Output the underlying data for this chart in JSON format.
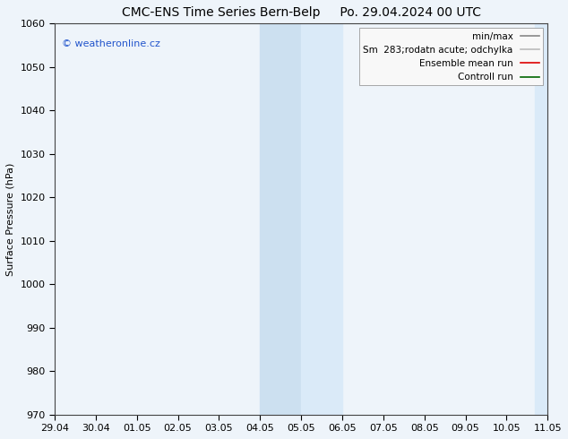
{
  "title_left": "CMC-ENS Time Series Bern-Belp",
  "title_right": "Po. 29.04.2024 00 UTC",
  "ylabel": "Surface Pressure (hPa)",
  "ylim": [
    970,
    1060
  ],
  "yticks": [
    970,
    980,
    990,
    1000,
    1010,
    1020,
    1030,
    1040,
    1050,
    1060
  ],
  "xtick_labels": [
    "29.04",
    "30.04",
    "01.05",
    "02.05",
    "03.05",
    "04.05",
    "05.05",
    "06.05",
    "07.05",
    "08.05",
    "09.05",
    "10.05",
    "11.05"
  ],
  "xtick_positions": [
    0,
    1,
    2,
    3,
    4,
    5,
    6,
    7,
    8,
    9,
    10,
    11,
    12
  ],
  "shade1_x_start": 5,
  "shade1_x_end": 6,
  "shade1_color": "#cce0f0",
  "shade2_x_start": 6,
  "shade2_x_end": 7,
  "shade2_color": "#daeaf8",
  "shade3_x_start": 11.7,
  "shade3_x_end": 12,
  "shade3_color": "#daeaf8",
  "plot_bg_color": "#eef4fa",
  "fig_bg_color": "#eef4fa",
  "watermark_text": "© weatheronline.cz",
  "watermark_color": "#2255cc",
  "legend_label_1": "min/max",
  "legend_label_2": "Sm  283;rodatn acute; odchylka",
  "legend_label_3": "Ensemble mean run",
  "legend_label_4": "Controll run",
  "legend_color_1": "#888888",
  "legend_color_2": "#bbbbbb",
  "legend_color_3": "#dd0000",
  "legend_color_4": "#006600",
  "title_fontsize": 10,
  "axis_label_fontsize": 8,
  "tick_fontsize": 8,
  "legend_fontsize": 7.5
}
